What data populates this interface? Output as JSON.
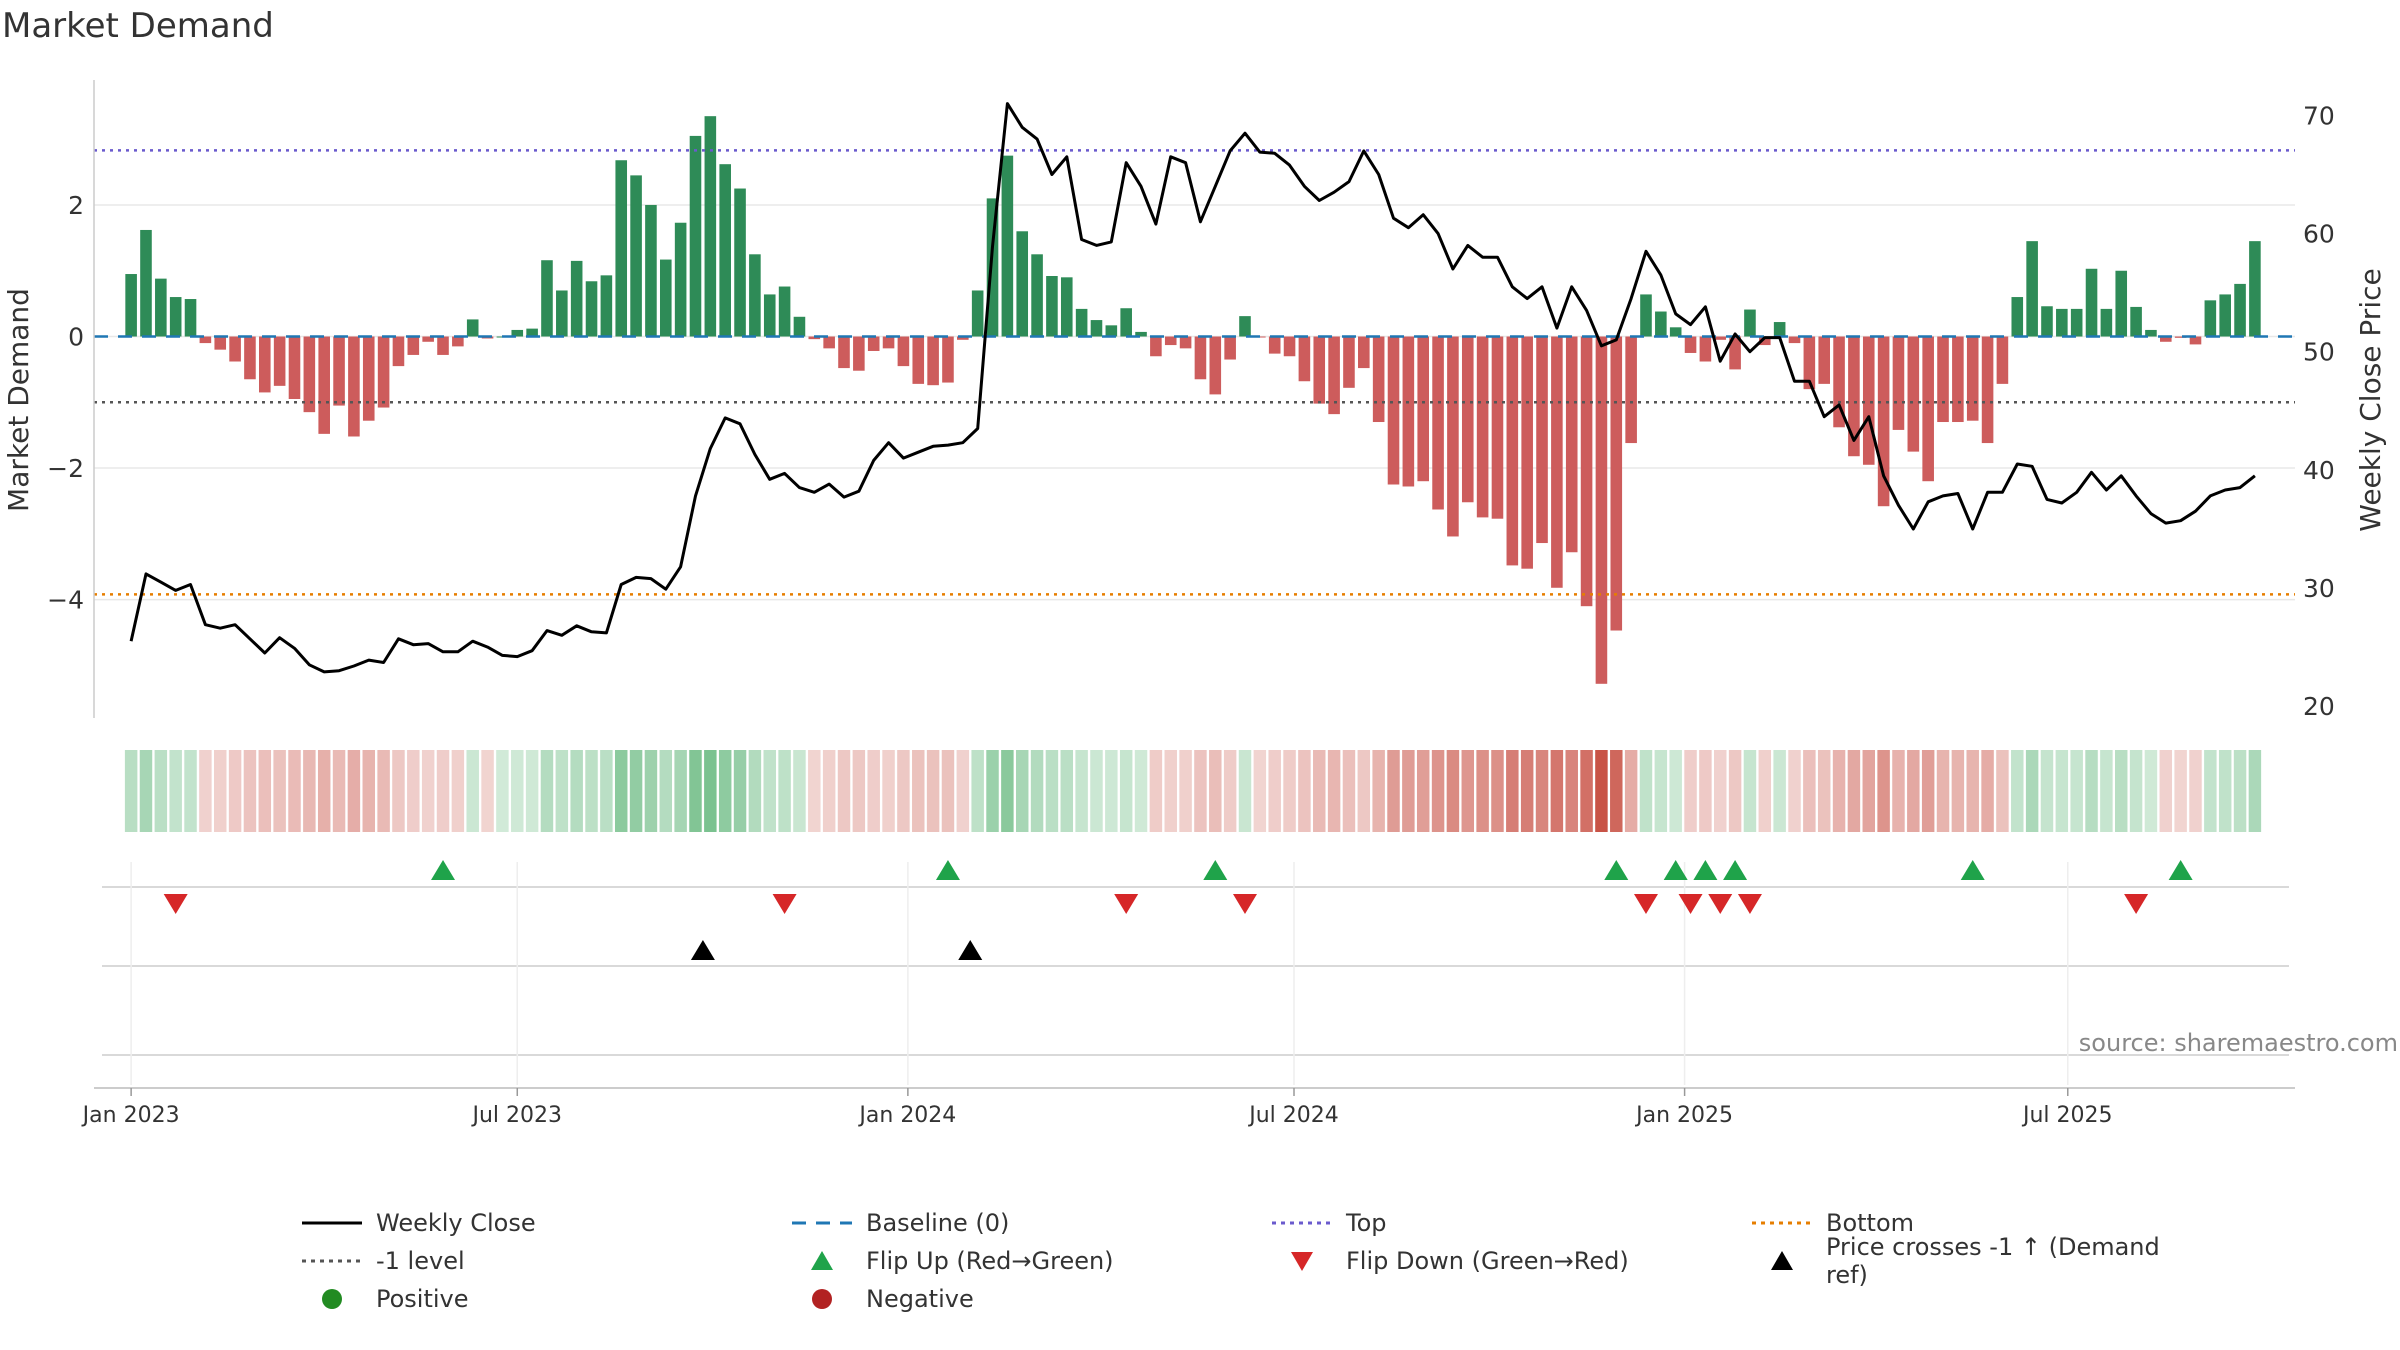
{
  "title": "Market Demand",
  "source": "source: sharemaestro.com",
  "colors": {
    "positive_bar": "#2e8b57",
    "negative_bar": "#cd5c5c",
    "close_line": "#000000",
    "baseline": "#1f77b4",
    "top": "#6a5acd",
    "bottom": "#e67e00",
    "minus_one": "#555555",
    "flip_up": "#1fa34a",
    "flip_down": "#d62728",
    "cross": "#000000",
    "positive_dot": "#228b22",
    "negative_dot": "#b22222"
  },
  "legend": [
    {
      "key": "close",
      "label": "Weekly Close"
    },
    {
      "key": "baseline",
      "label": "Baseline (0)"
    },
    {
      "key": "top",
      "label": "Top"
    },
    {
      "key": "bottom",
      "label": "Bottom"
    },
    {
      "key": "minus1",
      "label": "-1 level"
    },
    {
      "key": "flipup",
      "label": "Flip Up (Red→Green)"
    },
    {
      "key": "flipdown",
      "label": "Flip Down (Green→Red)"
    },
    {
      "key": "cross",
      "label": "Price crosses -1 ↑ (Demand ref)"
    },
    {
      "key": "positive",
      "label": "Positive"
    },
    {
      "key": "negative",
      "label": "Negative"
    }
  ],
  "chart_data": {
    "type": "bar",
    "title": "Market Demand",
    "ylabel": "Market Demand",
    "y2label": "Weekly Close Price",
    "ylim": [
      -5.8,
      3.9
    ],
    "y2lim": [
      19,
      73
    ],
    "yticks": [
      2,
      0,
      -2,
      -4
    ],
    "ytick_labels": [
      "2",
      "0",
      "−2",
      "−4"
    ],
    "y2ticks": [
      70,
      60,
      50,
      40,
      30,
      20
    ],
    "y2tick_labels": [
      "70",
      "60",
      "50",
      "40",
      "30",
      "20"
    ],
    "x_start_week": -2.5,
    "x_end_week": 145.7,
    "xticks": [
      {
        "label": "Jan 2023",
        "week": 0
      },
      {
        "label": "Jul 2023",
        "week": 26
      },
      {
        "label": "Jan 2024",
        "week": 52.3
      },
      {
        "label": "Jul 2024",
        "week": 78.3
      },
      {
        "label": "Jan 2025",
        "week": 104.6
      },
      {
        "label": "Jul 2025",
        "week": 130.4
      }
    ],
    "reference_lines": {
      "top": 2.83,
      "bottom": -3.92,
      "minus_one": -1.0,
      "baseline": 0
    },
    "demand": [
      0.95,
      1.62,
      0.88,
      0.6,
      0.57,
      -0.1,
      -0.2,
      -0.38,
      -0.65,
      -0.85,
      -0.75,
      -0.95,
      -1.15,
      -1.48,
      -1.05,
      -1.52,
      -1.28,
      -1.08,
      -0.45,
      -0.28,
      -0.08,
      -0.28,
      -0.15,
      0.26,
      -0.03,
      0.0,
      0.1,
      0.12,
      1.16,
      0.7,
      1.15,
      0.84,
      0.93,
      2.68,
      2.45,
      2.0,
      1.17,
      1.73,
      3.05,
      3.35,
      2.62,
      2.25,
      1.25,
      0.64,
      0.76,
      0.3,
      -0.04,
      -0.18,
      -0.48,
      -0.52,
      -0.22,
      -0.18,
      -0.45,
      -0.72,
      -0.74,
      -0.7,
      -0.05,
      0.7,
      2.1,
      2.75,
      1.6,
      1.25,
      0.92,
      0.9,
      0.42,
      0.25,
      0.17,
      0.43,
      0.07,
      -0.3,
      -0.13,
      -0.18,
      -0.65,
      -0.88,
      -0.35,
      0.31,
      -0.01,
      -0.26,
      -0.3,
      -0.68,
      -1.02,
      -1.18,
      -0.78,
      -0.48,
      -1.3,
      -2.25,
      -2.28,
      -2.2,
      -2.63,
      -3.04,
      -2.52,
      -2.75,
      -2.77,
      -3.48,
      -3.53,
      -3.14,
      -3.82,
      -3.28,
      -4.1,
      -5.28,
      -4.47,
      -1.62,
      0.64,
      0.38,
      0.14,
      -0.25,
      -0.38,
      -0.05,
      -0.5,
      0.41,
      -0.13,
      0.22,
      -0.1,
      -0.8,
      -0.72,
      -1.38,
      -1.82,
      -1.95,
      -2.58,
      -1.42,
      -1.75,
      -2.2,
      -1.3,
      -1.3,
      -1.28,
      -1.62,
      -0.72,
      0.6,
      1.45,
      0.46,
      0.42,
      0.42,
      1.03,
      0.42,
      1.0,
      0.45,
      0.1,
      -0.08,
      -0.02,
      -0.12,
      0.55,
      0.64,
      0.8,
      1.45
    ],
    "close": [
      25.5,
      31.2,
      30.5,
      29.8,
      30.3,
      26.9,
      26.6,
      26.9,
      25.7,
      24.5,
      25.8,
      24.9,
      23.5,
      22.9,
      23.0,
      23.4,
      23.9,
      23.7,
      25.7,
      25.2,
      25.3,
      24.6,
      24.6,
      25.5,
      25.0,
      24.3,
      24.2,
      24.7,
      26.4,
      26.0,
      26.8,
      26.3,
      26.2,
      30.3,
      30.9,
      30.8,
      29.9,
      31.8,
      37.8,
      41.8,
      44.4,
      43.9,
      41.3,
      39.2,
      39.7,
      38.5,
      38.1,
      38.8,
      37.7,
      38.2,
      40.8,
      42.3,
      41.0,
      41.5,
      42.0,
      42.1,
      42.3,
      43.5,
      58.9,
      71.0,
      69.0,
      68.0,
      65.0,
      66.5,
      59.5,
      59.0,
      59.3,
      66.0,
      64.0,
      60.8,
      66.5,
      66.0,
      61.0,
      64.0,
      67.0,
      68.5,
      66.9,
      66.8,
      65.8,
      64.0,
      62.8,
      63.5,
      64.4,
      67.0,
      65.0,
      61.3,
      60.5,
      61.6,
      60.0,
      57.0,
      59.0,
      58.0,
      58.0,
      55.5,
      54.5,
      55.5,
      52.0,
      55.5,
      53.5,
      50.5,
      51.0,
      54.5,
      58.5,
      56.5,
      53.2,
      52.3,
      53.8,
      49.2,
      51.5,
      50.0,
      51.2,
      51.2,
      47.5,
      47.5,
      44.5,
      45.5,
      42.5,
      44.5,
      39.5,
      37.0,
      35.0,
      37.3,
      37.8,
      38.0,
      35.0,
      38.1,
      38.1,
      40.5,
      40.3,
      37.5,
      37.2,
      38.1,
      39.8,
      38.3,
      39.5,
      37.8,
      36.3,
      35.5,
      35.7,
      36.5,
      37.8,
      38.3,
      38.5,
      39.5
    ],
    "flip_up_weeks": [
      21,
      55,
      73,
      100,
      104,
      106,
      108,
      124,
      138
    ],
    "flip_down_weeks": [
      3,
      44,
      67,
      75,
      102,
      105,
      107,
      109,
      135
    ],
    "cross_weeks": [
      38.5,
      56.5
    ],
    "source": "source: sharemaestro.com"
  }
}
